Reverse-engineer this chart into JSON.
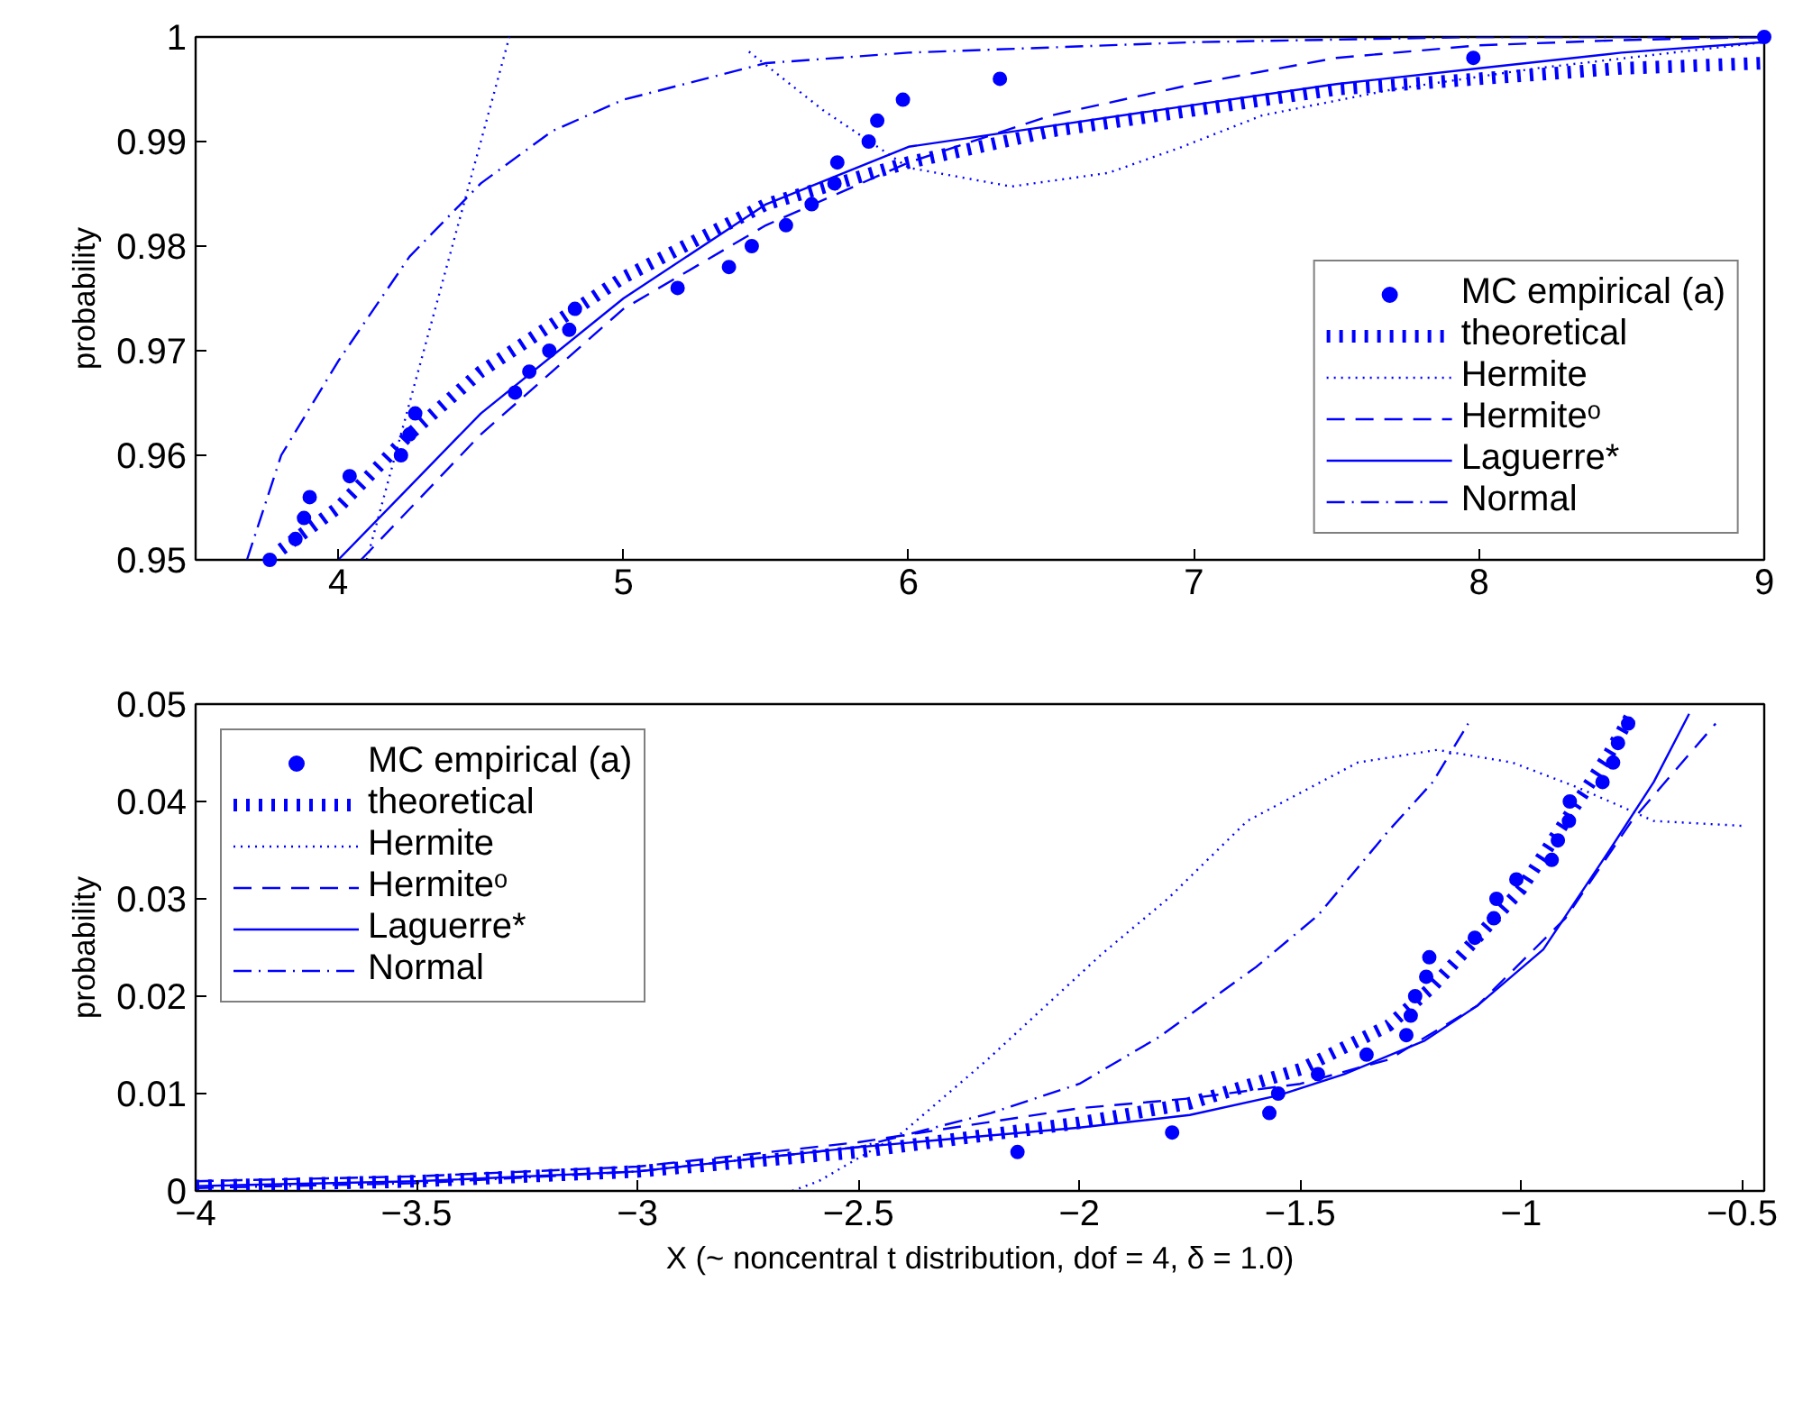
{
  "chart_data": [
    {
      "type": "line",
      "ylabel": "probability",
      "xlim": [
        3.5,
        9
      ],
      "ylim": [
        0.95,
        1
      ],
      "xticks": [
        4,
        5,
        6,
        7,
        8,
        9
      ],
      "yticks": [
        0.95,
        0.96,
        0.97,
        0.98,
        0.99,
        1
      ],
      "grid": false,
      "legend": "bottom right",
      "series": [
        {
          "name": "MC empirical (a)",
          "type": "scatter",
          "marker": "circle",
          "color": "#0000ff",
          "x": [
            3.76,
            3.85,
            3.88,
            3.9,
            4.04,
            4.22,
            4.25,
            4.27,
            4.62,
            4.67,
            4.74,
            4.81,
            4.83,
            5.19,
            5.37,
            5.45,
            5.57,
            5.66,
            5.74,
            5.75,
            5.86,
            5.89,
            5.98,
            6.32,
            7.98,
            9.0
          ],
          "values": [
            0.95,
            0.952,
            0.954,
            0.956,
            0.958,
            0.96,
            0.962,
            0.964,
            0.966,
            0.968,
            0.97,
            0.972,
            0.974,
            0.976,
            0.978,
            0.98,
            0.982,
            0.984,
            0.986,
            0.988,
            0.99,
            0.992,
            0.994,
            0.996,
            0.998,
            1.0
          ]
        },
        {
          "name": "theoretical",
          "line_style": "ticks",
          "color": "#0000ff",
          "x": [
            3.8,
            4.0,
            4.25,
            4.5,
            5.0,
            5.5,
            6.0,
            6.5,
            7.0,
            7.5,
            8.0,
            8.5,
            9.0
          ],
          "values": [
            0.951,
            0.955,
            0.962,
            0.968,
            0.977,
            0.984,
            0.988,
            0.991,
            0.993,
            0.995,
            0.996,
            0.997,
            0.9975
          ]
        },
        {
          "name": "Hermite",
          "line_style": "dotted",
          "color": "#0000ff",
          "x": [
            4.1,
            4.2,
            4.3,
            4.4,
            4.5,
            4.6,
            5.0,
            5.44,
            5.7,
            6.0,
            6.36,
            6.7,
            6.95,
            7.24,
            7.7,
            8.2,
            9.0
          ],
          "values": [
            0.95,
            0.96,
            0.97,
            0.98,
            0.99,
            1.0,
            null,
            0.9986,
            0.993,
            0.9875,
            0.9857,
            0.987,
            0.9894,
            0.9925,
            0.995,
            0.997,
            0.9995
          ]
        },
        {
          "name": "Hermiteᵒ",
          "line_style": "dashed",
          "color": "#0000ff",
          "x": [
            4.08,
            4.5,
            5.0,
            5.5,
            6.0,
            6.5,
            7.0,
            7.5,
            8.0,
            8.5,
            9.0
          ],
          "values": [
            0.95,
            0.962,
            0.974,
            0.982,
            0.988,
            0.9925,
            0.9955,
            0.998,
            0.9992,
            0.9997,
            1.0
          ]
        },
        {
          "name": "Laguerre*",
          "line_style": "solid",
          "color": "#0000ff",
          "x": [
            4.0,
            4.25,
            4.5,
            5.0,
            5.5,
            6.0,
            6.5,
            7.0,
            7.5,
            8.0,
            8.5,
            9.0
          ],
          "values": [
            0.95,
            0.957,
            0.964,
            0.975,
            0.984,
            0.9895,
            0.9915,
            0.9935,
            0.9955,
            0.997,
            0.9985,
            0.9995
          ]
        },
        {
          "name": "Normal",
          "line_style": "dashdot",
          "color": "#0000ff",
          "x": [
            3.68,
            3.8,
            4.0,
            4.25,
            4.5,
            4.75,
            5.0,
            5.5,
            6.0,
            7.0,
            8.0,
            9.0
          ],
          "values": [
            0.95,
            0.96,
            0.969,
            0.979,
            0.986,
            0.991,
            0.994,
            0.9975,
            0.9985,
            0.9995,
            1.0,
            1.0
          ]
        }
      ]
    },
    {
      "type": "line",
      "ylabel": "probability",
      "xlabel": "X (~ noncentral t distribution, dof = 4, δ = 1.0)",
      "xlim": [
        -4,
        -0.45
      ],
      "ylim": [
        0,
        0.05
      ],
      "xticks": [
        {
          "value": -4,
          "label": "−4"
        },
        {
          "value": -3.5,
          "label": "−3.5"
        },
        {
          "value": -3,
          "label": "−3"
        },
        {
          "value": -2.5,
          "label": "−2.5"
        },
        {
          "value": -2,
          "label": "−2"
        },
        {
          "value": -1.5,
          "label": "−1.5"
        },
        {
          "value": -1,
          "label": "−1"
        },
        {
          "value": -0.5,
          "label": "−0.5"
        }
      ],
      "yticks": [
        0,
        0.01,
        0.02,
        0.03,
        0.04,
        0.05
      ],
      "grid": false,
      "legend": "top left",
      "series": [
        {
          "name": "MC empirical (a)",
          "type": "scatter",
          "marker": "circle",
          "color": "#0000ff",
          "x": [
            -2.14,
            -1.79,
            -1.57,
            -1.55,
            -1.46,
            -1.35,
            -1.26,
            -1.25,
            -1.24,
            -1.215,
            -1.208,
            -1.105,
            -1.062,
            -1.056,
            -1.011,
            -0.931,
            -0.917,
            -0.892,
            -0.89,
            -0.816,
            -0.792,
            -0.781,
            -0.758
          ],
          "values": [
            0.004,
            0.006,
            0.008,
            0.01,
            0.012,
            0.014,
            0.016,
            0.018,
            0.02,
            0.022,
            0.024,
            0.026,
            0.028,
            0.03,
            0.032,
            0.034,
            0.036,
            0.038,
            0.04,
            0.042,
            0.044,
            0.046,
            0.048
          ]
        },
        {
          "name": "theoretical",
          "line_style": "ticks",
          "color": "#0000ff",
          "x": [
            -4,
            -3.5,
            -3,
            -2.5,
            -2,
            -1.75,
            -1.5,
            -1.3,
            -1.2,
            -1.1,
            -1,
            -0.9,
            -0.8,
            -0.75
          ],
          "values": [
            0.0005,
            0.001,
            0.002,
            0.004,
            0.007,
            0.009,
            0.0125,
            0.017,
            0.021,
            0.026,
            0.031,
            0.038,
            0.045,
            0.049
          ]
        },
        {
          "name": "Hermite",
          "line_style": "dotted",
          "color": "#0000ff",
          "x": [
            -2.65,
            -2.59,
            -2.4,
            -2.21,
            -1.95,
            -1.8,
            -1.62,
            -1.37,
            -1.19,
            -1.02,
            -0.87,
            -0.7,
            -0.5
          ],
          "values": [
            0,
            0.001,
            0.006,
            0.0134,
            0.0243,
            0.03,
            0.038,
            0.044,
            0.0453,
            0.044,
            0.0414,
            0.038,
            0.0375
          ]
        },
        {
          "name": "Hermiteᵒ",
          "line_style": "dashed",
          "color": "#0000ff",
          "x": [
            -4,
            -3.5,
            -3,
            -2.5,
            -2,
            -1.75,
            -1.5,
            -1.3,
            -1.1,
            -0.9,
            -0.75,
            -0.56
          ],
          "values": [
            0.001,
            0.0015,
            0.0025,
            0.005,
            0.0085,
            0.0095,
            0.011,
            0.0135,
            0.019,
            0.028,
            0.038,
            0.048
          ]
        },
        {
          "name": "Laguerre*",
          "line_style": "solid",
          "color": "#0000ff",
          "x": [
            -4,
            -3.5,
            -3,
            -2.5,
            -2,
            -1.75,
            -1.55,
            -1.4,
            -1.22,
            -1.1,
            -0.95,
            -0.8,
            -0.7,
            -0.62
          ],
          "values": [
            0.0005,
            0.001,
            0.002,
            0.0045,
            0.0065,
            0.0078,
            0.0098,
            0.012,
            0.0154,
            0.019,
            0.0248,
            0.035,
            0.042,
            0.049
          ]
        },
        {
          "name": "Normal",
          "line_style": "dashdot",
          "color": "#0000ff",
          "x": [
            -4,
            -3.5,
            -3,
            -2.5,
            -2.2,
            -2,
            -1.82,
            -1.6,
            -1.46,
            -1.3,
            -1.2,
            -1.12
          ],
          "values": [
            0.0003,
            0.0008,
            0.002,
            0.0045,
            0.008,
            0.011,
            0.0158,
            0.023,
            0.0283,
            0.037,
            0.042,
            0.048
          ]
        }
      ]
    }
  ]
}
